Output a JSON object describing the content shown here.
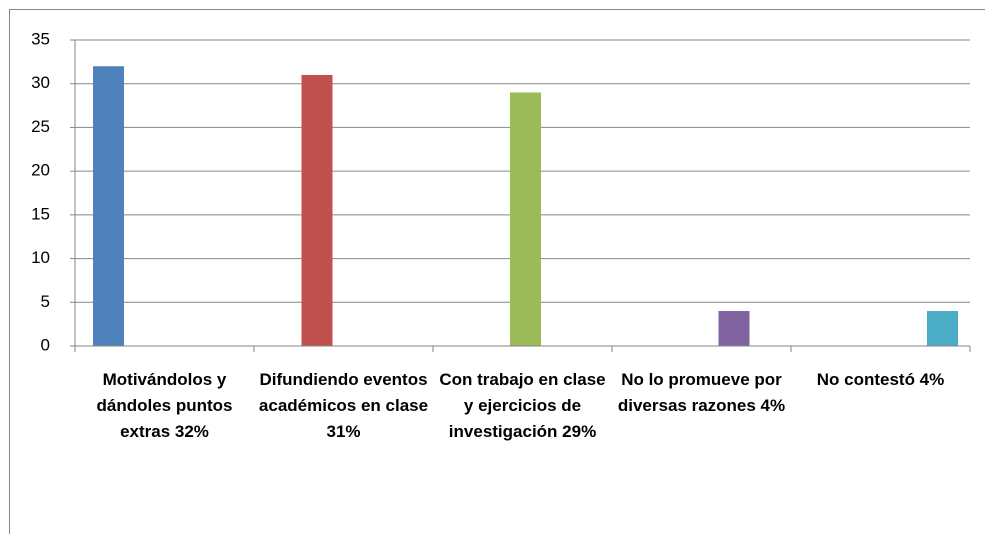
{
  "chart_data": {
    "type": "bar",
    "categories": [
      "Motivándolos y dándoles puntos extras 32%",
      "Difundiendo eventos académicos en clase 31%",
      "Con trabajo en clase y ejercicios de investigación 29%",
      "No lo promueve por diversas razones 4%",
      "No contestó 4%"
    ],
    "values": [
      32,
      31,
      29,
      4,
      4
    ],
    "colors": [
      "#4f81bd",
      "#c0504d",
      "#9bbb59",
      "#8064a2",
      "#4bacc6"
    ],
    "ylim": [
      0,
      35
    ],
    "yticks": [
      0,
      5,
      10,
      15,
      20,
      25,
      30,
      35
    ],
    "grid": true
  }
}
